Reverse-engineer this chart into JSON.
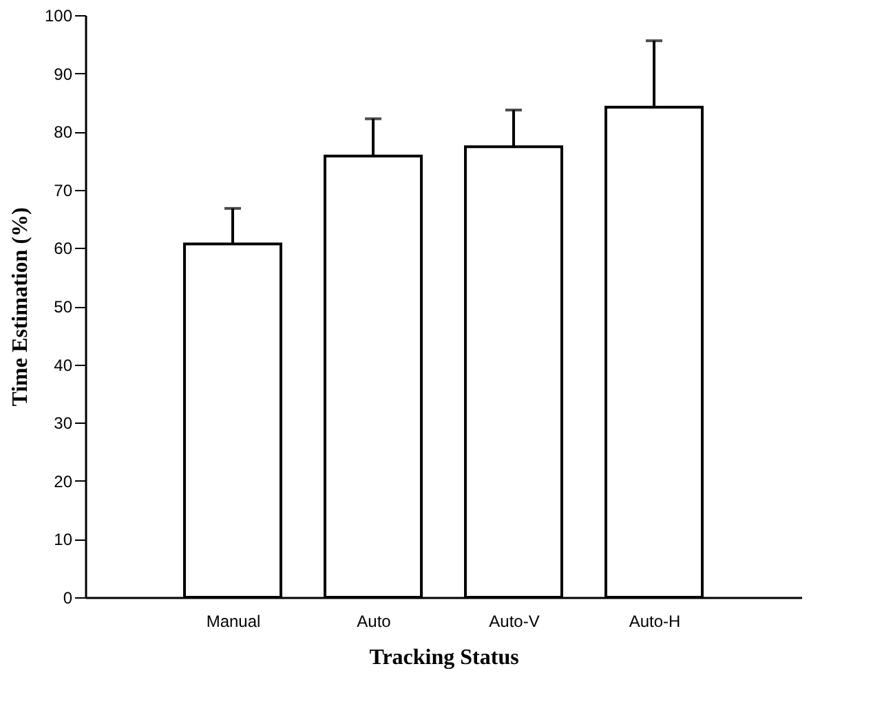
{
  "chart_data": {
    "type": "bar",
    "xlabel": "Tracking Status",
    "ylabel": "Time Estimation (%)",
    "categories": [
      "Manual",
      "Auto",
      "Auto-V",
      "Auto-H"
    ],
    "values": [
      60.7,
      75.8,
      77.4,
      84.2
    ],
    "errors": [
      [
        60.7,
        66.8
      ],
      [
        75.8,
        82.2
      ],
      [
        77.4,
        83.7
      ],
      [
        84.2,
        95.6
      ]
    ],
    "color": "#ffffff",
    "ylim": [
      0,
      100
    ],
    "yticks": [
      0,
      10,
      20,
      30,
      40,
      50,
      60,
      70,
      80,
      90,
      100
    ],
    "grid": false
  }
}
